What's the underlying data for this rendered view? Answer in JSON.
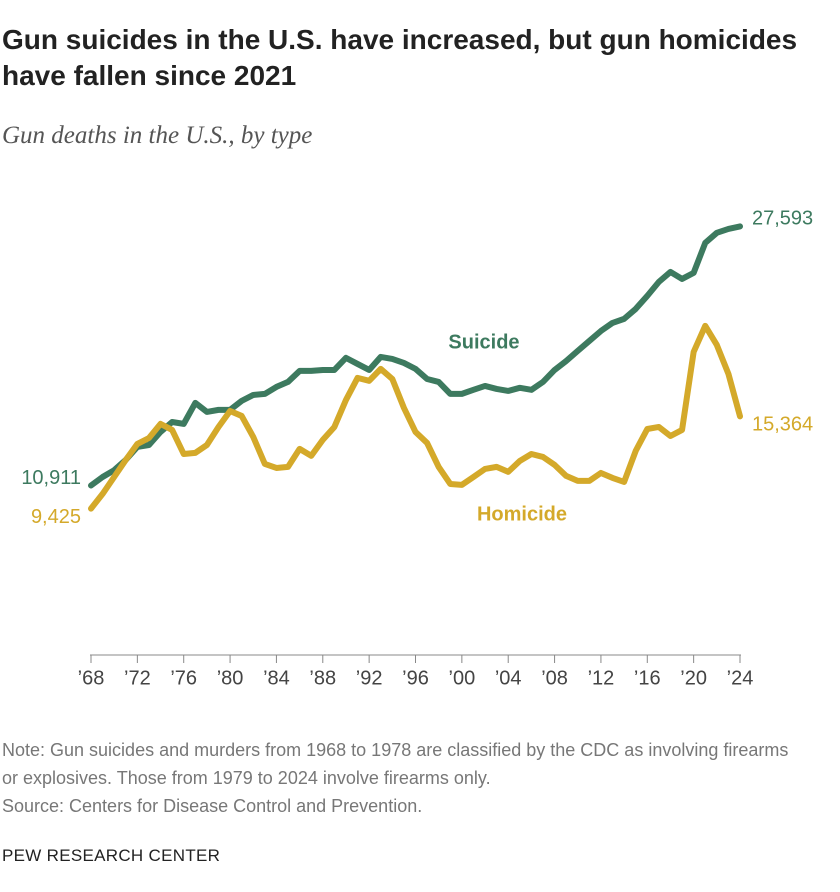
{
  "chart_data": {
    "type": "line",
    "title": "Gun suicides in the U.S. have increased, but gun homicides have fallen since 2021",
    "subtitle": "Gun deaths in the U.S., by type",
    "x": [
      1968,
      1969,
      1970,
      1971,
      1972,
      1973,
      1974,
      1975,
      1976,
      1977,
      1978,
      1979,
      1980,
      1981,
      1982,
      1983,
      1984,
      1985,
      1986,
      1987,
      1988,
      1989,
      1990,
      1991,
      1992,
      1993,
      1994,
      1995,
      1996,
      1997,
      1998,
      1999,
      2000,
      2001,
      2002,
      2003,
      2004,
      2005,
      2006,
      2007,
      2008,
      2009,
      2010,
      2011,
      2012,
      2013,
      2014,
      2015,
      2016,
      2017,
      2018,
      2019,
      2020,
      2021,
      2022,
      2023,
      2024
    ],
    "xlim": [
      1968,
      2024
    ],
    "xticks": [
      {
        "value": 1968,
        "label": "’68"
      },
      {
        "value": 1972,
        "label": "’72"
      },
      {
        "value": 1976,
        "label": "’76"
      },
      {
        "value": 1980,
        "label": "’80"
      },
      {
        "value": 1984,
        "label": "’84"
      },
      {
        "value": 1988,
        "label": "’88"
      },
      {
        "value": 1992,
        "label": "’92"
      },
      {
        "value": 1996,
        "label": "’96"
      },
      {
        "value": 2000,
        "label": "’00"
      },
      {
        "value": 2004,
        "label": "’04"
      },
      {
        "value": 2008,
        "label": "’08"
      },
      {
        "value": 2012,
        "label": "’12"
      },
      {
        "value": 2016,
        "label": "’16"
      },
      {
        "value": 2020,
        "label": "’20"
      },
      {
        "value": 2024,
        "label": "’24"
      }
    ],
    "ylim": [
      0,
      30000
    ],
    "series": [
      {
        "name": "Suicide",
        "color": "#3d7a5f",
        "values": [
          10911,
          11460,
          11900,
          12560,
          13400,
          13520,
          14360,
          15000,
          14880,
          16230,
          15650,
          15780,
          15780,
          16360,
          16740,
          16810,
          17260,
          17580,
          18290,
          18290,
          18350,
          18350,
          19130,
          18740,
          18350,
          19190,
          19060,
          18800,
          18420,
          17770,
          17580,
          16810,
          16810,
          17070,
          17320,
          17130,
          17000,
          17200,
          17070,
          17580,
          18350,
          18930,
          19580,
          20220,
          20860,
          21380,
          21640,
          22280,
          23120,
          24020,
          24660,
          24210,
          24600,
          26530,
          27180,
          27430,
          27593
        ],
        "value_labels": [
          "10,911",
          null,
          null,
          null,
          null,
          null,
          null,
          null,
          null,
          null,
          null,
          null,
          null,
          null,
          null,
          null,
          null,
          null,
          null,
          null,
          null,
          null,
          null,
          null,
          null,
          null,
          null,
          null,
          null,
          null,
          null,
          null,
          null,
          null,
          null,
          null,
          null,
          null,
          null,
          null,
          null,
          null,
          null,
          null,
          null,
          null,
          null,
          null,
          null,
          null,
          null,
          null,
          null,
          null,
          null,
          null,
          "27,593"
        ]
      },
      {
        "name": "Homicide",
        "color": "#d4a92a",
        "values": [
          9425,
          10370,
          11460,
          12560,
          13590,
          13970,
          14880,
          14490,
          12940,
          13010,
          13520,
          14680,
          15710,
          15390,
          14040,
          12300,
          12040,
          12110,
          13270,
          12820,
          13850,
          14680,
          16420,
          17840,
          17650,
          18420,
          17770,
          15910,
          14360,
          13650,
          12110,
          11010,
          10950,
          11460,
          11980,
          12110,
          11790,
          12490,
          12940,
          12750,
          12240,
          11530,
          11210,
          11210,
          11720,
          11400,
          11140,
          13140,
          14550,
          14680,
          14100,
          14490,
          19510,
          21190,
          19960,
          18100,
          15364
        ],
        "value_labels": [
          "9,425",
          null,
          null,
          null,
          null,
          null,
          null,
          null,
          null,
          null,
          null,
          null,
          null,
          null,
          null,
          null,
          null,
          null,
          null,
          null,
          null,
          null,
          null,
          null,
          null,
          null,
          null,
          null,
          null,
          null,
          null,
          null,
          null,
          null,
          null,
          null,
          null,
          null,
          null,
          null,
          null,
          null,
          null,
          null,
          null,
          null,
          null,
          null,
          null,
          null,
          null,
          null,
          null,
          null,
          null,
          null,
          "15,364"
        ]
      }
    ],
    "note": "Note: Gun suicides and murders from 1968 to 1978 are classified by the CDC as involving firearms or explosives. Those from 1979 to 2024 involve firearms only.",
    "source": "Source: Centers for Disease Control and Prevention.",
    "footer": "PEW RESEARCH CENTER"
  }
}
